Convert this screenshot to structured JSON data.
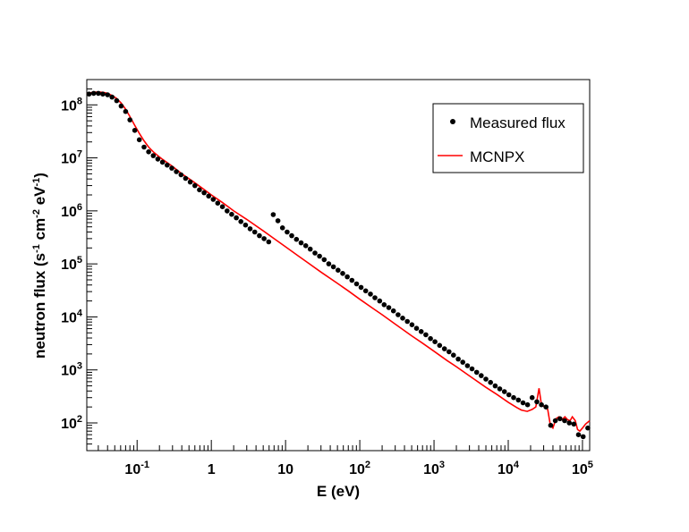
{
  "chart_data": {
    "type": "scatter",
    "xlabel": "E  (eV)",
    "ylabel": "neutron flux (s<sup>-1</sup> cm<sup>-2</sup> eV<sup>-1</sup>)",
    "xscale": "log",
    "yscale": "log",
    "xlim": [
      0.021,
      125000
    ],
    "ylim": [
      30,
      300000000
    ],
    "x_ticks": [
      {
        "value": 0.1,
        "base": "10",
        "exp": "-1"
      },
      {
        "value": 1,
        "base": "1",
        "exp": ""
      },
      {
        "value": 10,
        "base": "10",
        "exp": ""
      },
      {
        "value": 100,
        "base": "10",
        "exp": "2"
      },
      {
        "value": 1000,
        "base": "10",
        "exp": "3"
      },
      {
        "value": 10000,
        "base": "10",
        "exp": "4"
      },
      {
        "value": 100000,
        "base": "10",
        "exp": "5"
      }
    ],
    "y_ticks": [
      {
        "value": 100,
        "base": "10",
        "exp": "2"
      },
      {
        "value": 1000,
        "base": "10",
        "exp": "3"
      },
      {
        "value": 10000,
        "base": "10",
        "exp": "4"
      },
      {
        "value": 100000,
        "base": "10",
        "exp": "5"
      },
      {
        "value": 1000000,
        "base": "10",
        "exp": "6"
      },
      {
        "value": 10000000,
        "base": "10",
        "exp": "7"
      },
      {
        "value": 100000000,
        "base": "10",
        "exp": "8"
      }
    ],
    "legend_position": "top-right",
    "grid": false,
    "series": [
      {
        "name": "Measured flux",
        "kind": "points",
        "color": "#000000",
        "points": [
          [
            0.0225,
            160000000.0
          ],
          [
            0.026,
            165000000.0
          ],
          [
            0.03,
            165000000.0
          ],
          [
            0.0345,
            160000000.0
          ],
          [
            0.04,
            155000000.0
          ],
          [
            0.046,
            140000000.0
          ],
          [
            0.053,
            120000000.0
          ],
          [
            0.061,
            95000000.0
          ],
          [
            0.07,
            75000000.0
          ],
          [
            0.08,
            52000000.0
          ],
          [
            0.093,
            33000000.0
          ],
          [
            0.107,
            22000000.0
          ],
          [
            0.124,
            16000000.0
          ],
          [
            0.143,
            13000000.0
          ],
          [
            0.165,
            11000000.0
          ],
          [
            0.19,
            9500000.0
          ],
          [
            0.22,
            8300000.0
          ],
          [
            0.254,
            7300000.0
          ],
          [
            0.293,
            6400000.0
          ],
          [
            0.338,
            5500000.0
          ],
          [
            0.39,
            4800000.0
          ],
          [
            0.45,
            4100000.0
          ],
          [
            0.52,
            3500000.0
          ],
          [
            0.6,
            3000000.0
          ],
          [
            0.692,
            2500000.0
          ],
          [
            0.8,
            2200000.0
          ],
          [
            0.92,
            1900000.0
          ],
          [
            1.06,
            1650000.0
          ],
          [
            1.22,
            1400000.0
          ],
          [
            1.41,
            1200000.0
          ],
          [
            1.63,
            1000000.0
          ],
          [
            1.88,
            860000.0
          ],
          [
            2.17,
            740000.0
          ],
          [
            2.5,
            630000.0
          ],
          [
            2.89,
            540000.0
          ],
          [
            3.33,
            460000.0
          ],
          [
            3.85,
            400000.0
          ],
          [
            4.44,
            340000.0
          ],
          [
            5.13,
            300000.0
          ],
          [
            5.92,
            260000.0
          ],
          [
            6.83,
            850000.0
          ],
          [
            7.88,
            650000.0
          ],
          [
            9.1,
            480000.0
          ],
          [
            10.5,
            400000.0
          ],
          [
            12.1,
            340000.0
          ],
          [
            14.0,
            290000.0
          ],
          [
            16.2,
            250000.0
          ],
          [
            18.7,
            220000.0
          ],
          [
            21.5,
            190000.0
          ],
          [
            24.9,
            160000.0
          ],
          [
            28.7,
            140000.0
          ],
          [
            33.1,
            120000.0
          ],
          [
            38.2,
            100000.0
          ],
          [
            44.1,
            88000.0
          ],
          [
            50.9,
            76000.0
          ],
          [
            58.8,
            66000.0
          ],
          [
            67.9,
            57000.0
          ],
          [
            78.3,
            49000.0
          ],
          [
            90.4,
            42000.0
          ],
          [
            104,
            36000.0
          ],
          [
            120,
            31000.0
          ],
          [
            139,
            27000.0
          ],
          [
            160,
            23000.0
          ],
          [
            185,
            20000.0
          ],
          [
            213,
            17000.0
          ],
          [
            246,
            15000.0
          ],
          [
            284,
            13000.0
          ],
          [
            328,
            11000.0
          ],
          [
            378,
            9500.0
          ],
          [
            437,
            8200.0
          ],
          [
            504,
            7100.0
          ],
          [
            582,
            6100.0
          ],
          [
            672,
            5300.0
          ],
          [
            776,
            4600.0
          ],
          [
            895,
            3900.0
          ],
          [
            1030,
            3400.0
          ],
          [
            1190,
            2900.0
          ],
          [
            1380,
            2500.0
          ],
          [
            1590,
            2200.0
          ],
          [
            1830,
            1900.0
          ],
          [
            2120,
            1600.0
          ],
          [
            2440,
            1400.0
          ],
          [
            2820,
            1200.0
          ],
          [
            3250,
            1050.0
          ],
          [
            3750,
            900
          ],
          [
            4330,
            780
          ],
          [
            5000,
            670
          ],
          [
            5770,
            580
          ],
          [
            6660,
            500
          ],
          [
            7690,
            440
          ],
          [
            8880,
            390
          ],
          [
            10200,
            340
          ],
          [
            11800,
            300
          ],
          [
            13700,
            270
          ],
          [
            15800,
            240
          ],
          [
            18200,
            220
          ],
          [
            21000,
            300
          ],
          [
            24300,
            250
          ],
          [
            28000,
            220
          ],
          [
            32300,
            200
          ],
          [
            37300,
            90
          ],
          [
            43100,
            110
          ],
          [
            49700,
            120
          ],
          [
            57400,
            110
          ],
          [
            66300,
            100
          ],
          [
            76500,
            95
          ],
          [
            88300,
            60
          ],
          [
            102000,
            55
          ],
          [
            118000,
            80
          ]
        ]
      },
      {
        "name": "MCNPX",
        "kind": "line",
        "color": "#ff0000",
        "points": [
          [
            0.021,
            160000000.0
          ],
          [
            0.025,
            172000000.0
          ],
          [
            0.03,
            175000000.0
          ],
          [
            0.035,
            172000000.0
          ],
          [
            0.04,
            165000000.0
          ],
          [
            0.046,
            150000000.0
          ],
          [
            0.053,
            132000000.0
          ],
          [
            0.061,
            108000000.0
          ],
          [
            0.07,
            83000000.0
          ],
          [
            0.08,
            60000000.0
          ],
          [
            0.093,
            41000000.0
          ],
          [
            0.107,
            29000000.0
          ],
          [
            0.124,
            21000000.0
          ],
          [
            0.143,
            16000000.0
          ],
          [
            0.165,
            13000000.0
          ],
          [
            0.19,
            11000000.0
          ],
          [
            0.22,
            9400000.0
          ],
          [
            0.3,
            6900000.0
          ],
          [
            0.4,
            5000000.0
          ],
          [
            0.55,
            3700000.0
          ],
          [
            0.75,
            2700000.0
          ],
          [
            1.0,
            2000000.0
          ],
          [
            1.4,
            1450000.0
          ],
          [
            2.0,
            1000000.0
          ],
          [
            3.0,
            690000.0
          ],
          [
            5.0,
            420000.0
          ],
          [
            7.0,
            300000.0
          ],
          [
            10,
            210000.0
          ],
          [
            15,
            140000.0
          ],
          [
            20,
            105000.0
          ],
          [
            30,
            70000.0
          ],
          [
            50,
            43000.0
          ],
          [
            70,
            31000.0
          ],
          [
            100,
            21500.0
          ],
          [
            150,
            14500.0
          ],
          [
            200,
            11000.0
          ],
          [
            300,
            7300.0
          ],
          [
            500,
            4400.0
          ],
          [
            700,
            3200.0
          ],
          [
            1000,
            2250.0
          ],
          [
            1500,
            1500.0
          ],
          [
            2000,
            1150.0
          ],
          [
            3000,
            770
          ],
          [
            5000,
            470
          ],
          [
            7000,
            345
          ],
          [
            10000,
            245
          ],
          [
            13000,
            195
          ],
          [
            15000,
            175
          ],
          [
            18000,
            165
          ],
          [
            21000,
            180
          ],
          [
            23500,
            200
          ],
          [
            26000,
            450
          ],
          [
            28000,
            220
          ],
          [
            31000,
            200
          ],
          [
            34000,
            180
          ],
          [
            37000,
            90
          ],
          [
            40000,
            80
          ],
          [
            44000,
            120
          ],
          [
            48000,
            130
          ],
          [
            53000,
            115
          ],
          [
            58000,
            130
          ],
          [
            63000,
            115
          ],
          [
            68000,
            110
          ],
          [
            73000,
            130
          ],
          [
            80000,
            110
          ],
          [
            86000,
            75
          ],
          [
            92000,
            70
          ],
          [
            100000,
            80
          ],
          [
            110000,
            95
          ],
          [
            125000,
            110
          ]
        ]
      }
    ]
  }
}
